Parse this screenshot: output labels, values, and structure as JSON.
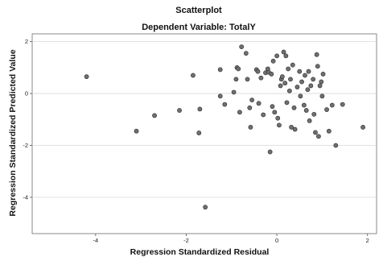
{
  "chart_data": {
    "type": "scatter",
    "title": "Scatterplot",
    "subtitle": "Dependent Variable: TotalY",
    "xlabel": "Regression Standardized Residual",
    "ylabel": "Regression Standardized Predicted Value",
    "xlim": [
      -5.4,
      2.2
    ],
    "ylim": [
      -5.4,
      2.3
    ],
    "xticks": [
      -4,
      -2,
      0,
      2
    ],
    "yticks": [
      2,
      0,
      -2,
      -4
    ],
    "grid": "horizontal",
    "legend": "none",
    "point_color": "#6f6f6f",
    "points": [
      {
        "x": -4.2,
        "y": 0.65
      },
      {
        "x": -3.1,
        "y": -1.45
      },
      {
        "x": -2.7,
        "y": -0.85
      },
      {
        "x": -2.15,
        "y": -0.65
      },
      {
        "x": -1.85,
        "y": 0.7
      },
      {
        "x": -1.7,
        "y": -0.6
      },
      {
        "x": -1.72,
        "y": -1.52
      },
      {
        "x": -1.58,
        "y": -4.38
      },
      {
        "x": -1.25,
        "y": 0.92
      },
      {
        "x": -1.25,
        "y": -0.1
      },
      {
        "x": -1.15,
        "y": -0.42
      },
      {
        "x": -0.95,
        "y": 0.05
      },
      {
        "x": -0.9,
        "y": 0.55
      },
      {
        "x": -0.88,
        "y": 1.0
      },
      {
        "x": -0.85,
        "y": 0.95
      },
      {
        "x": -0.82,
        "y": -0.72
      },
      {
        "x": -0.78,
        "y": 1.8
      },
      {
        "x": -0.68,
        "y": 1.55
      },
      {
        "x": -0.65,
        "y": 0.55
      },
      {
        "x": -0.6,
        "y": -0.55
      },
      {
        "x": -0.58,
        "y": -1.3
      },
      {
        "x": -0.55,
        "y": -0.25
      },
      {
        "x": -0.45,
        "y": 0.92
      },
      {
        "x": -0.42,
        "y": 0.85
      },
      {
        "x": -0.4,
        "y": -0.38
      },
      {
        "x": -0.35,
        "y": 0.6
      },
      {
        "x": -0.3,
        "y": -0.82
      },
      {
        "x": -0.25,
        "y": 0.8
      },
      {
        "x": -0.2,
        "y": 0.95
      },
      {
        "x": -0.18,
        "y": 0.82
      },
      {
        "x": -0.15,
        "y": -2.25
      },
      {
        "x": -0.12,
        "y": 0.75
      },
      {
        "x": -0.1,
        "y": -0.5
      },
      {
        "x": -0.08,
        "y": 1.25
      },
      {
        "x": -0.05,
        "y": -0.72
      },
      {
        "x": 0.0,
        "y": 1.45
      },
      {
        "x": 0.02,
        "y": -0.95
      },
      {
        "x": 0.05,
        "y": -1.22
      },
      {
        "x": 0.08,
        "y": 0.3
      },
      {
        "x": 0.1,
        "y": 0.55
      },
      {
        "x": 0.12,
        "y": 0.65
      },
      {
        "x": 0.15,
        "y": 1.6
      },
      {
        "x": 0.18,
        "y": 0.4
      },
      {
        "x": 0.2,
        "y": 1.45
      },
      {
        "x": 0.22,
        "y": -0.35
      },
      {
        "x": 0.25,
        "y": 0.95
      },
      {
        "x": 0.28,
        "y": 0.1
      },
      {
        "x": 0.3,
        "y": 0.55
      },
      {
        "x": 0.32,
        "y": -1.3
      },
      {
        "x": 0.35,
        "y": 1.1
      },
      {
        "x": 0.38,
        "y": -0.55
      },
      {
        "x": 0.4,
        "y": -1.38
      },
      {
        "x": 0.45,
        "y": 0.25
      },
      {
        "x": 0.5,
        "y": 0.85
      },
      {
        "x": 0.52,
        "y": -0.1
      },
      {
        "x": 0.55,
        "y": 0.45
      },
      {
        "x": 0.6,
        "y": -0.45
      },
      {
        "x": 0.62,
        "y": 0.7
      },
      {
        "x": 0.65,
        "y": -0.65
      },
      {
        "x": 0.68,
        "y": 0.15
      },
      {
        "x": 0.7,
        "y": 0.85
      },
      {
        "x": 0.72,
        "y": -1.05
      },
      {
        "x": 0.75,
        "y": 0.3
      },
      {
        "x": 0.8,
        "y": 0.55
      },
      {
        "x": 0.82,
        "y": -0.8
      },
      {
        "x": 0.85,
        "y": -1.5
      },
      {
        "x": 0.88,
        "y": 1.5
      },
      {
        "x": 0.9,
        "y": 1.05
      },
      {
        "x": 0.92,
        "y": -1.65
      },
      {
        "x": 0.95,
        "y": 0.3
      },
      {
        "x": 0.98,
        "y": 0.45
      },
      {
        "x": 1.0,
        "y": -0.1
      },
      {
        "x": 1.02,
        "y": 0.75
      },
      {
        "x": 1.1,
        "y": -0.62
      },
      {
        "x": 1.15,
        "y": -1.45
      },
      {
        "x": 1.22,
        "y": -0.45
      },
      {
        "x": 1.3,
        "y": -2.0
      },
      {
        "x": 1.45,
        "y": -0.42
      },
      {
        "x": 1.9,
        "y": -1.3
      }
    ]
  }
}
